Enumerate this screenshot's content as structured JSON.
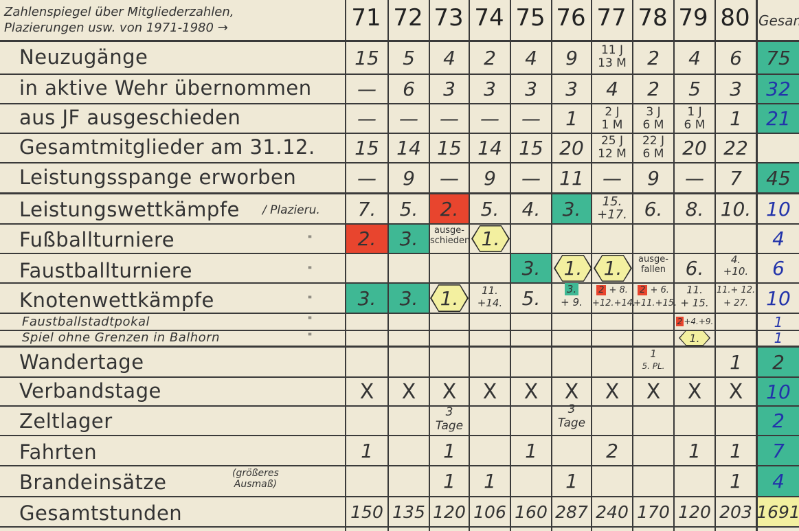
{
  "header": {
    "title_line1": "Zahlenspiegel über Mitgliederzahlen,",
    "title_line2": "Plazierungen usw. von 1971-1980",
    "arrow": "→",
    "years": [
      "71",
      "72",
      "73",
      "74",
      "75",
      "76",
      "77",
      "78",
      "79",
      "80"
    ],
    "total": "Gesamt"
  },
  "rows": {
    "neuzugaenge": "Neuzugänge",
    "aktive": "in aktive Wehr übernommen",
    "jf": "aus JF ausgeschieden",
    "gesamtmitglieder": "Gesamtmitglieder am 31.12.",
    "spange": "Leistungsspange erworben",
    "wettkaempfe": "Leistungswettkämpfe",
    "plazieru": "/ Plazieru.",
    "fussball": "Fußballturniere",
    "faustball": "Faustballturniere",
    "knoten": "Knotenwettkämpfe",
    "stadtpokal": "Faustballstadtpokal",
    "grenzen": "Spiel ohne Grenzen in Balhorn",
    "wandertage": "Wandertage",
    "verbandstage": "Verbandstage",
    "zeltlager": "Zeltlager",
    "fahrten": "Fahrten",
    "brand": "Brandeinsätze",
    "brand_note1": "(größeres",
    "brand_note2": "Ausmaß)",
    "gesamtstunden": "Gesamtstunden",
    "ditto": "\""
  },
  "cells": {
    "r1": [
      "15",
      "5",
      "4",
      "2",
      "4",
      "9",
      "",
      "2",
      "4",
      "6",
      "75"
    ],
    "r1_77a": "11 J",
    "r1_77b": "13 M",
    "r2": [
      "—",
      "6",
      "3",
      "3",
      "3",
      "3",
      "4",
      "2",
      "5",
      "3",
      "32"
    ],
    "r3": [
      "—",
      "—",
      "—",
      "—",
      "—",
      "1",
      "",
      "",
      "",
      "1",
      "21"
    ],
    "r3_77a": "2 J",
    "r3_77b": "1 M",
    "r3_78a": "3 J",
    "r3_78b": "6 M",
    "r3_79a": "1 J",
    "r3_79b": "6 M",
    "r4": [
      "15",
      "14",
      "15",
      "14",
      "15",
      "20",
      "",
      "",
      "20",
      "22"
    ],
    "r4_77a": "25 J",
    "r4_77b": "12 M",
    "r4_78a": "22 J",
    "r4_78b": "6 M",
    "r5": [
      "—",
      "9",
      "—",
      "9",
      "—",
      "11",
      "—",
      "9",
      "—",
      "7",
      "45"
    ],
    "r6": [
      "7.",
      "5.",
      "2.",
      "5.",
      "4.",
      "3.",
      "",
      "6.",
      "8.",
      "10.",
      "10"
    ],
    "r6_77a": "15.",
    "r6_77b": "+17.",
    "r7": [
      "2.",
      "3.",
      "",
      "1.",
      "4"
    ],
    "r7_73a": "ausge-",
    "r7_73b": "schieden",
    "r8": [
      "3.",
      "1.",
      "1.",
      "6.",
      "6"
    ],
    "r8_78a": "ausge-",
    "r8_78b": "fallen",
    "r8_80a": "4.",
    "r8_80b": "+10.",
    "r9": [
      "3.",
      "3.",
      "1.",
      "5.",
      "10"
    ],
    "r9_74a": "11.",
    "r9_74b": "+14.",
    "r9_76a": "3.",
    "r9_76b": "+ 9.",
    "r9_77a": "2",
    "r9_77b": "+ 8.",
    "r9_77c": "+12.+14.",
    "r9_78a": "2",
    "r9_78b": "+ 6.",
    "r9_78c": "+11.+15.",
    "r9_79a": "11.",
    "r9_79b": "+ 15.",
    "r9_80a": "11.+ 12.",
    "r9_80b": "+ 27.",
    "r10": [
      "1"
    ],
    "r10_79a": "2",
    "r10_79b": "+4.+9.",
    "r11": [
      "1.",
      "1"
    ],
    "r12": [
      "1",
      "1",
      "2"
    ],
    "r12_78b": "5. PL.",
    "r13": [
      "X",
      "10"
    ],
    "r14": [
      "3",
      "Tage",
      "3",
      "Tage",
      "2"
    ],
    "r15": [
      "1",
      "1",
      "1",
      "2",
      "1",
      "1",
      "7"
    ],
    "r16": [
      "1",
      "1",
      "1",
      "1",
      "4"
    ],
    "r17": [
      "150",
      "135",
      "120",
      "106",
      "160",
      "287",
      "240",
      "170",
      "120",
      "203",
      "1691"
    ]
  },
  "colors": {
    "teal": "#3fb894",
    "red": "#e8452e",
    "yellow": "#f3f0a0",
    "blue_ink": "#2233aa"
  }
}
